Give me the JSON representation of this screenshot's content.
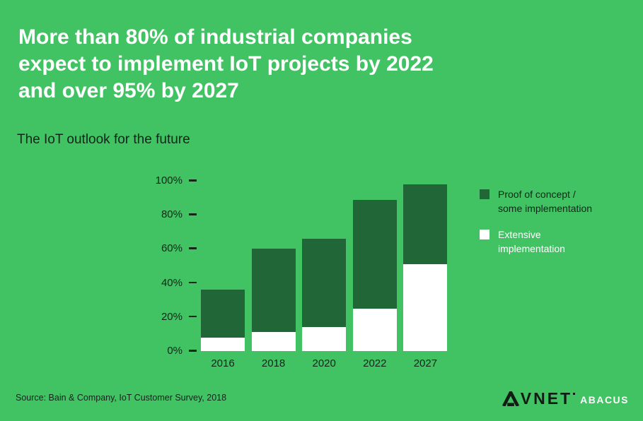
{
  "slide": {
    "title": "More than 80% of industrial companies\nexpect to implement IoT projects by 2022\nand over 95% by 2027",
    "subtitle": "The IoT outlook for the future",
    "source": "Source: Bain & Company, IoT Customer Survey, 2018",
    "colors": {
      "background": "#41c363",
      "dark_green": "#216637",
      "white": "#ffffff",
      "dark_text": "#13241b",
      "logo_dark": "#101c14"
    }
  },
  "legend": {
    "items": [
      {
        "label": "Proof of concept /\nsome implementation",
        "swatch_color": "#216637",
        "text_color": "#13241b"
      },
      {
        "label": "Extensive\nimplementation",
        "swatch_color": "#ffffff",
        "text_color": "#ffffff"
      }
    ]
  },
  "logo": {
    "brand": "AVNET",
    "brand_rest": "VNET",
    "sub_brand": "ABACUS"
  },
  "chart_data": {
    "type": "bar",
    "stacked": true,
    "title": "The IoT outlook for the future",
    "categories": [
      "2016",
      "2018",
      "2020",
      "2022",
      "2027"
    ],
    "series": [
      {
        "name": "Extensive implementation",
        "color": "#ffffff",
        "values": [
          8,
          11,
          14,
          25,
          51
        ]
      },
      {
        "name": "Proof of concept / some implementation",
        "color": "#216637",
        "values": [
          28,
          49,
          52,
          64,
          47
        ]
      }
    ],
    "totals": [
      36,
      60,
      66,
      89,
      98
    ],
    "xlabel": "",
    "ylabel": "",
    "ylim": [
      0,
      100
    ],
    "yticks": [
      0,
      20,
      40,
      60,
      80,
      100
    ],
    "ytick_suffix": "%",
    "grid": false,
    "legend_position": "right"
  }
}
